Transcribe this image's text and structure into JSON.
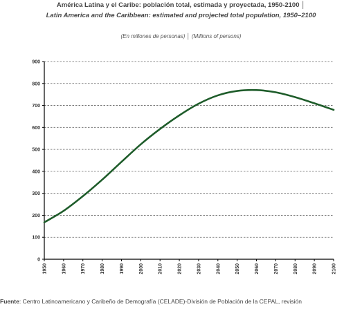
{
  "title_es": "América Latina y el Caribe: población total, estimada y proyectada, 1950-2100 │",
  "title_en": "Latin America and the Caribbean: estimated and projected total population, 1950–2100",
  "units": "(En millones de personas) │ (Millions of persons)",
  "source": {
    "label": "Fuente",
    "text": ": Centro Latinoamericano y Caribeño de Demografía (CELADE)-División de Población de la CEPAL, revisión"
  },
  "colors": {
    "line": "#1e5c2a",
    "grid": "#666666",
    "axis": "#000000"
  },
  "chart_data": {
    "type": "line",
    "title": "América Latina y el Caribe: población total, estimada y proyectada, 1950-2100",
    "xlabel": "",
    "ylabel": "",
    "xlim": [
      1950,
      2100
    ],
    "ylim": [
      0,
      900
    ],
    "x_ticks": [
      1950,
      1960,
      1970,
      1980,
      1990,
      2000,
      2010,
      2020,
      2030,
      2040,
      2050,
      2060,
      2070,
      2080,
      2090,
      2100
    ],
    "y_ticks": [
      0,
      100,
      200,
      300,
      400,
      500,
      600,
      700,
      800,
      900
    ],
    "grid": true,
    "series": [
      {
        "x": [
          1950,
          1960,
          1970,
          1980,
          1990,
          2000,
          2010,
          2020,
          2030,
          2040,
          2050,
          2060,
          2070,
          2080,
          2090,
          2100
        ],
        "values": [
          168,
          220,
          287,
          362,
          443,
          523,
          593,
          655,
          708,
          746,
          766,
          770,
          760,
          738,
          710,
          680
        ]
      }
    ]
  }
}
